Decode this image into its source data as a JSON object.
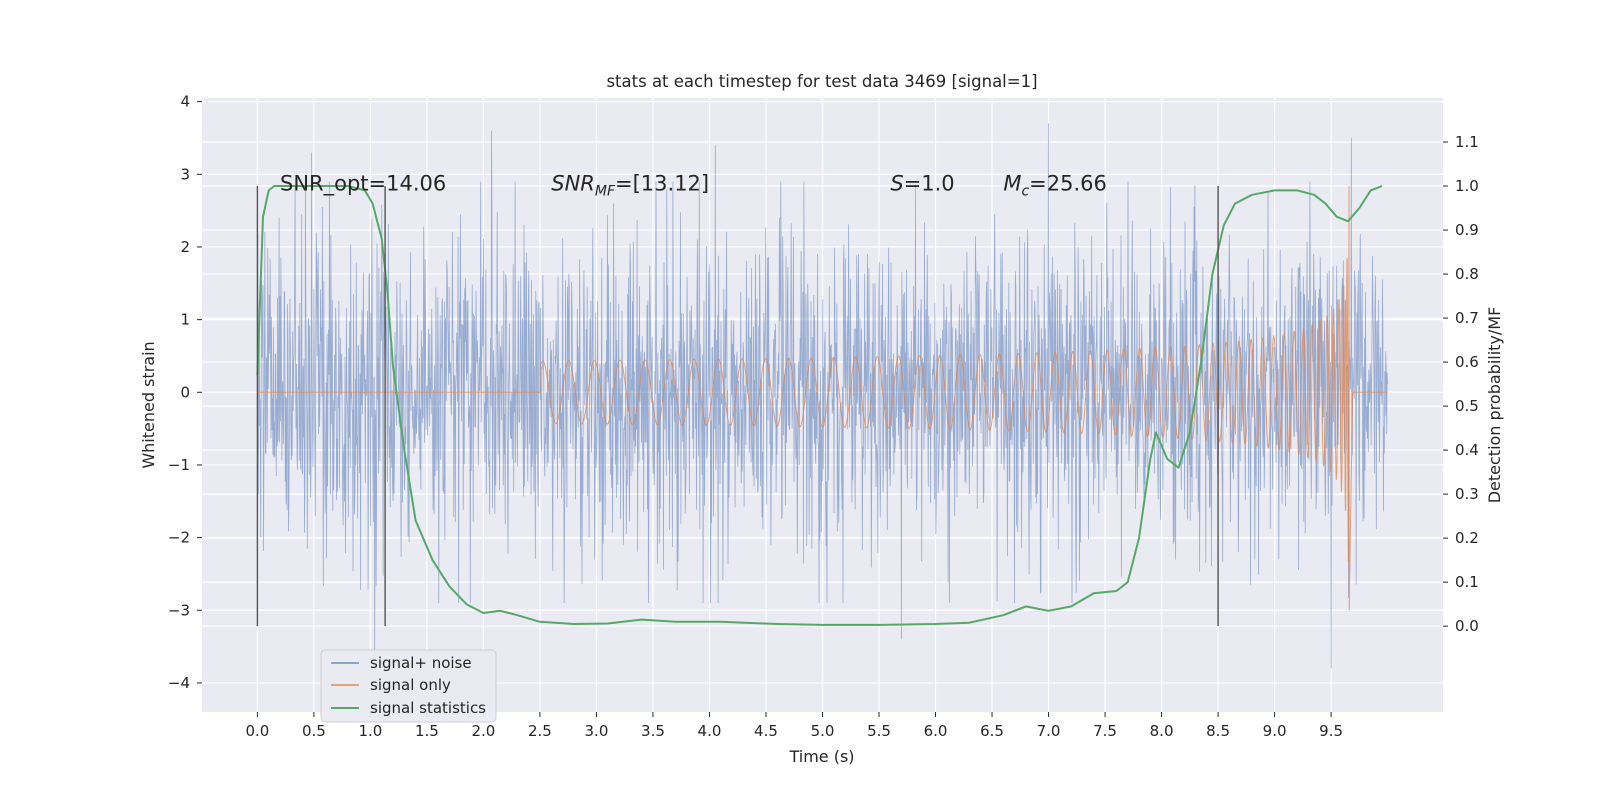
{
  "chart_data": {
    "type": "line",
    "title": "stats at each timestep for test data 3469 [signal=1]",
    "xlabel": "Time (s)",
    "ylabel": "Whitened strain",
    "y2label": "Detection probability/MF",
    "xlim": [
      -0.49,
      10.49
    ],
    "ylim": [
      -4.4,
      4.05
    ],
    "y2lim": [
      -0.195,
      1.2
    ],
    "x_ticks": [
      0.0,
      0.5,
      1.0,
      1.5,
      2.0,
      2.5,
      3.0,
      3.5,
      4.0,
      4.5,
      5.0,
      5.5,
      6.0,
      6.5,
      7.0,
      7.5,
      8.0,
      8.5,
      9.0,
      9.5
    ],
    "x_tick_labels": [
      "0.0",
      "0.5",
      "1.0",
      "1.5",
      "2.0",
      "2.5",
      "3.0",
      "3.5",
      "4.0",
      "4.5",
      "5.0",
      "5.5",
      "6.0",
      "6.5",
      "7.0",
      "7.5",
      "8.0",
      "8.5",
      "9.0",
      "9.5"
    ],
    "y_ticks": [
      -4,
      -3,
      -2,
      -1,
      0,
      1,
      2,
      3,
      4
    ],
    "y_tick_labels": [
      "−4",
      "−3",
      "−2",
      "−1",
      "0",
      "1",
      "2",
      "3",
      "4"
    ],
    "y2_ticks": [
      0.0,
      0.1,
      0.2,
      0.3,
      0.4,
      0.5,
      0.6,
      0.7,
      0.8,
      0.9,
      1.0,
      1.1
    ],
    "y2_tick_labels": [
      "0.0",
      "0.1",
      "0.2",
      "0.3",
      "0.4",
      "0.5",
      "0.6",
      "0.7",
      "0.8",
      "0.9",
      "1.0",
      "1.1"
    ],
    "grid": true,
    "legend_placement": "lower-left",
    "colors": {
      "background": "#eaeaf2",
      "noise": "#4c72b0",
      "signal": "#dd8452",
      "stats": "#55a868",
      "vline": "#555555"
    },
    "annotations": [
      {
        "text": "SNR_opt=14.06",
        "x": 0.2
      },
      {
        "base": "SNR",
        "sub": "MF",
        "rest": "=[13.12]",
        "x": 2.6
      },
      {
        "base": "S",
        "rest": "=1.0",
        "x": 5.6
      },
      {
        "base": "M",
        "sub": "c",
        "rest": "=25.66",
        "x": 6.6
      }
    ],
    "vertical_lines": [
      0.0,
      1.13,
      8.5
    ],
    "series": [
      {
        "name": "signal+ noise",
        "kind": "noise",
        "x_range": [
          0.0,
          10.0
        ],
        "envelope_core": 1.5,
        "spike_extremes": [
          {
            "x": 0.48,
            "y": 3.3
          },
          {
            "x": 1.04,
            "y": -3.7
          },
          {
            "x": 2.07,
            "y": 3.6
          },
          {
            "x": 4.05,
            "y": 3.4
          },
          {
            "x": 5.7,
            "y": -3.4
          },
          {
            "x": 7.0,
            "y": 3.7
          },
          {
            "x": 9.5,
            "y": -3.8
          },
          {
            "x": 9.68,
            "y": 3.5
          }
        ]
      },
      {
        "name": "signal only",
        "kind": "chirp",
        "x_range": [
          0.0,
          10.0
        ],
        "merger_time": 9.66,
        "peak_amplitude": 3.0
      },
      {
        "name": "signal statistics",
        "kind": "curve",
        "axis": "right",
        "x": [
          0.0,
          0.05,
          0.1,
          0.15,
          0.25,
          0.4,
          0.6,
          0.8,
          0.95,
          1.02,
          1.1,
          1.15,
          1.2,
          1.3,
          1.4,
          1.55,
          1.7,
          1.85,
          2.0,
          2.15,
          2.3,
          2.5,
          2.8,
          3.1,
          3.4,
          3.7,
          4.1,
          4.6,
          5.0,
          5.5,
          6.0,
          6.3,
          6.6,
          6.8,
          7.0,
          7.2,
          7.4,
          7.6,
          7.7,
          7.8,
          7.9,
          7.95,
          8.05,
          8.15,
          8.25,
          8.35,
          8.45,
          8.55,
          8.65,
          8.8,
          9.0,
          9.2,
          9.35,
          9.45,
          9.55,
          9.65,
          9.75,
          9.85,
          9.95
        ],
        "y": [
          0.57,
          0.93,
          0.99,
          1.0,
          1.0,
          1.0,
          1.0,
          1.0,
          0.99,
          0.96,
          0.88,
          0.76,
          0.59,
          0.4,
          0.24,
          0.15,
          0.09,
          0.05,
          0.03,
          0.035,
          0.025,
          0.01,
          0.005,
          0.006,
          0.015,
          0.01,
          0.01,
          0.005,
          0.003,
          0.003,
          0.005,
          0.008,
          0.025,
          0.045,
          0.035,
          0.045,
          0.075,
          0.08,
          0.1,
          0.2,
          0.38,
          0.44,
          0.38,
          0.36,
          0.44,
          0.6,
          0.8,
          0.91,
          0.96,
          0.98,
          0.99,
          0.99,
          0.98,
          0.96,
          0.93,
          0.92,
          0.95,
          0.99,
          1.0
        ]
      }
    ]
  }
}
